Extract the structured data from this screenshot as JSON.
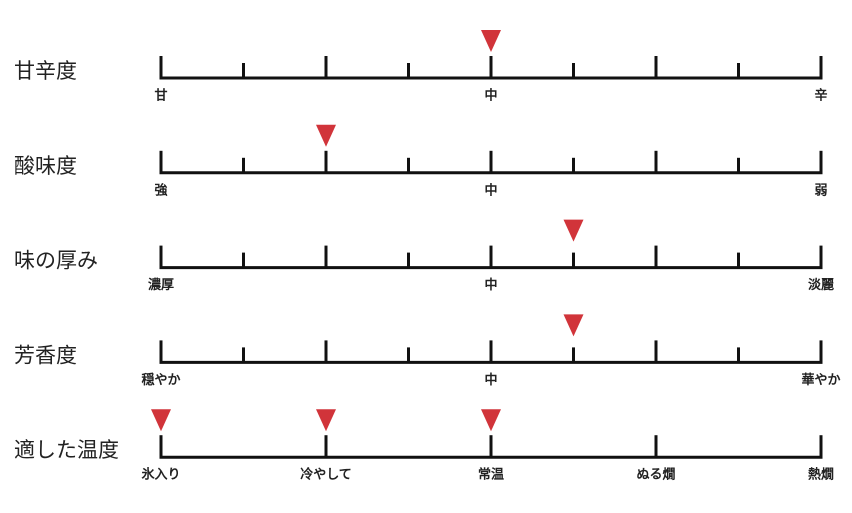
{
  "scales": [
    {
      "label": "甘辛度",
      "min": 0,
      "max": 8,
      "ticks": [
        0,
        1,
        2,
        3,
        4,
        5,
        6,
        7,
        8
      ],
      "tick_labels": [
        {
          "value": 0,
          "label": "甘"
        },
        {
          "value": 4,
          "label": "中"
        },
        {
          "value": 8,
          "label": "辛"
        }
      ],
      "markers": [
        4
      ]
    },
    {
      "label": "酸味度",
      "min": 0,
      "max": 8,
      "ticks": [
        0,
        1,
        2,
        3,
        4,
        5,
        6,
        7,
        8
      ],
      "tick_labels": [
        {
          "value": 0,
          "label": "強"
        },
        {
          "value": 4,
          "label": "中"
        },
        {
          "value": 8,
          "label": "弱"
        }
      ],
      "markers": [
        2
      ]
    },
    {
      "label": "味の厚み",
      "min": 0,
      "max": 8,
      "ticks": [
        0,
        1,
        2,
        3,
        4,
        5,
        6,
        7,
        8
      ],
      "tick_labels": [
        {
          "value": 0,
          "label": "濃厚"
        },
        {
          "value": 4,
          "label": "中"
        },
        {
          "value": 8,
          "label": "淡麗"
        }
      ],
      "markers": [
        5
      ]
    },
    {
      "label": "芳香度",
      "min": 0,
      "max": 8,
      "ticks": [
        0,
        1,
        2,
        3,
        4,
        5,
        6,
        7,
        8
      ],
      "tick_labels": [
        {
          "value": 0,
          "label": "穏やか"
        },
        {
          "value": 4,
          "label": "中"
        },
        {
          "value": 8,
          "label": "華やか"
        }
      ],
      "markers": [
        5
      ]
    },
    {
      "label": "適した温度",
      "min": 0,
      "max": 8,
      "ticks": [
        0,
        2,
        4,
        6,
        8
      ],
      "tick_labels": [
        {
          "value": 0,
          "label": "氷入り"
        },
        {
          "value": 2,
          "label": "冷やして"
        },
        {
          "value": 4,
          "label": "常温"
        },
        {
          "value": 6,
          "label": "ぬる燗"
        },
        {
          "value": 8,
          "label": "熱燗"
        }
      ],
      "markers": [
        0,
        2,
        4
      ]
    }
  ]
}
